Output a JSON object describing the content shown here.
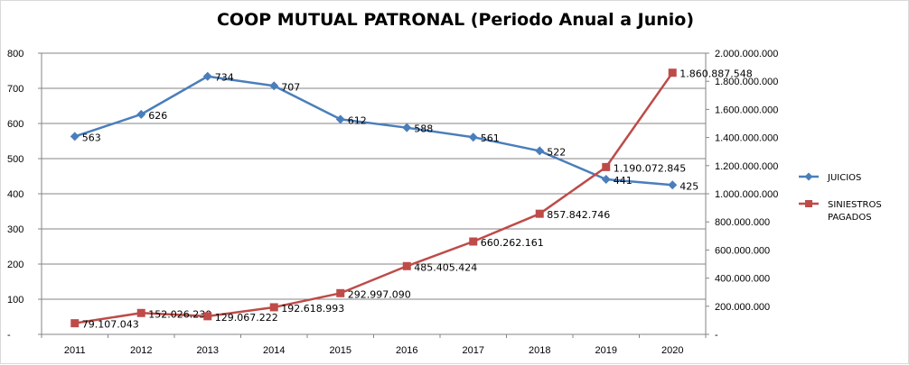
{
  "chart_data": {
    "type": "line",
    "title": "COOP MUTUAL PATRONAL (Periodo Anual a Junio)",
    "categories": [
      "2011",
      "2012",
      "2013",
      "2014",
      "2015",
      "2016",
      "2017",
      "2018",
      "2019",
      "2020"
    ],
    "series": [
      {
        "name": "JUICIOS",
        "axis": "left",
        "color": "#4a7ebb",
        "marker": "diamond",
        "values": [
          563,
          626,
          734,
          707,
          612,
          588,
          561,
          522,
          441,
          425
        ],
        "labels": [
          "563",
          "626",
          "734",
          "707",
          "612",
          "588",
          "561",
          "522",
          "441",
          "425"
        ]
      },
      {
        "name": "SINIESTROS PAGADOS",
        "axis": "right",
        "color": "#be4b48",
        "marker": "square",
        "values": [
          79107043,
          152026230,
          129067222,
          192618993,
          292997090,
          485405424,
          660262161,
          857842746,
          1190072845,
          1860887548
        ],
        "labels": [
          "79.107.043",
          "152.026.230",
          "129.067.222",
          "192.618.993",
          "292.997.090",
          "485.405.424",
          "660.262.161",
          "857.842.746",
          "1.190.072.845",
          "1.860.887.548"
        ]
      }
    ],
    "y_left": {
      "min": 0,
      "max": 800,
      "step": 100,
      "tick_labels": [
        "-",
        "100",
        "200",
        "300",
        "400",
        "500",
        "600",
        "700",
        "800"
      ]
    },
    "y_right": {
      "min": 0,
      "max": 2000000000,
      "step": 200000000,
      "tick_labels": [
        "-",
        "200.000.000",
        "400.000.000",
        "600.000.000",
        "800.000.000",
        "1.000.000.000",
        "1.200.000.000",
        "1.400.000.000",
        "1.600.000.000",
        "1.800.000.000",
        "2.000.000.000"
      ]
    },
    "grid": true,
    "legend_position": "right"
  }
}
